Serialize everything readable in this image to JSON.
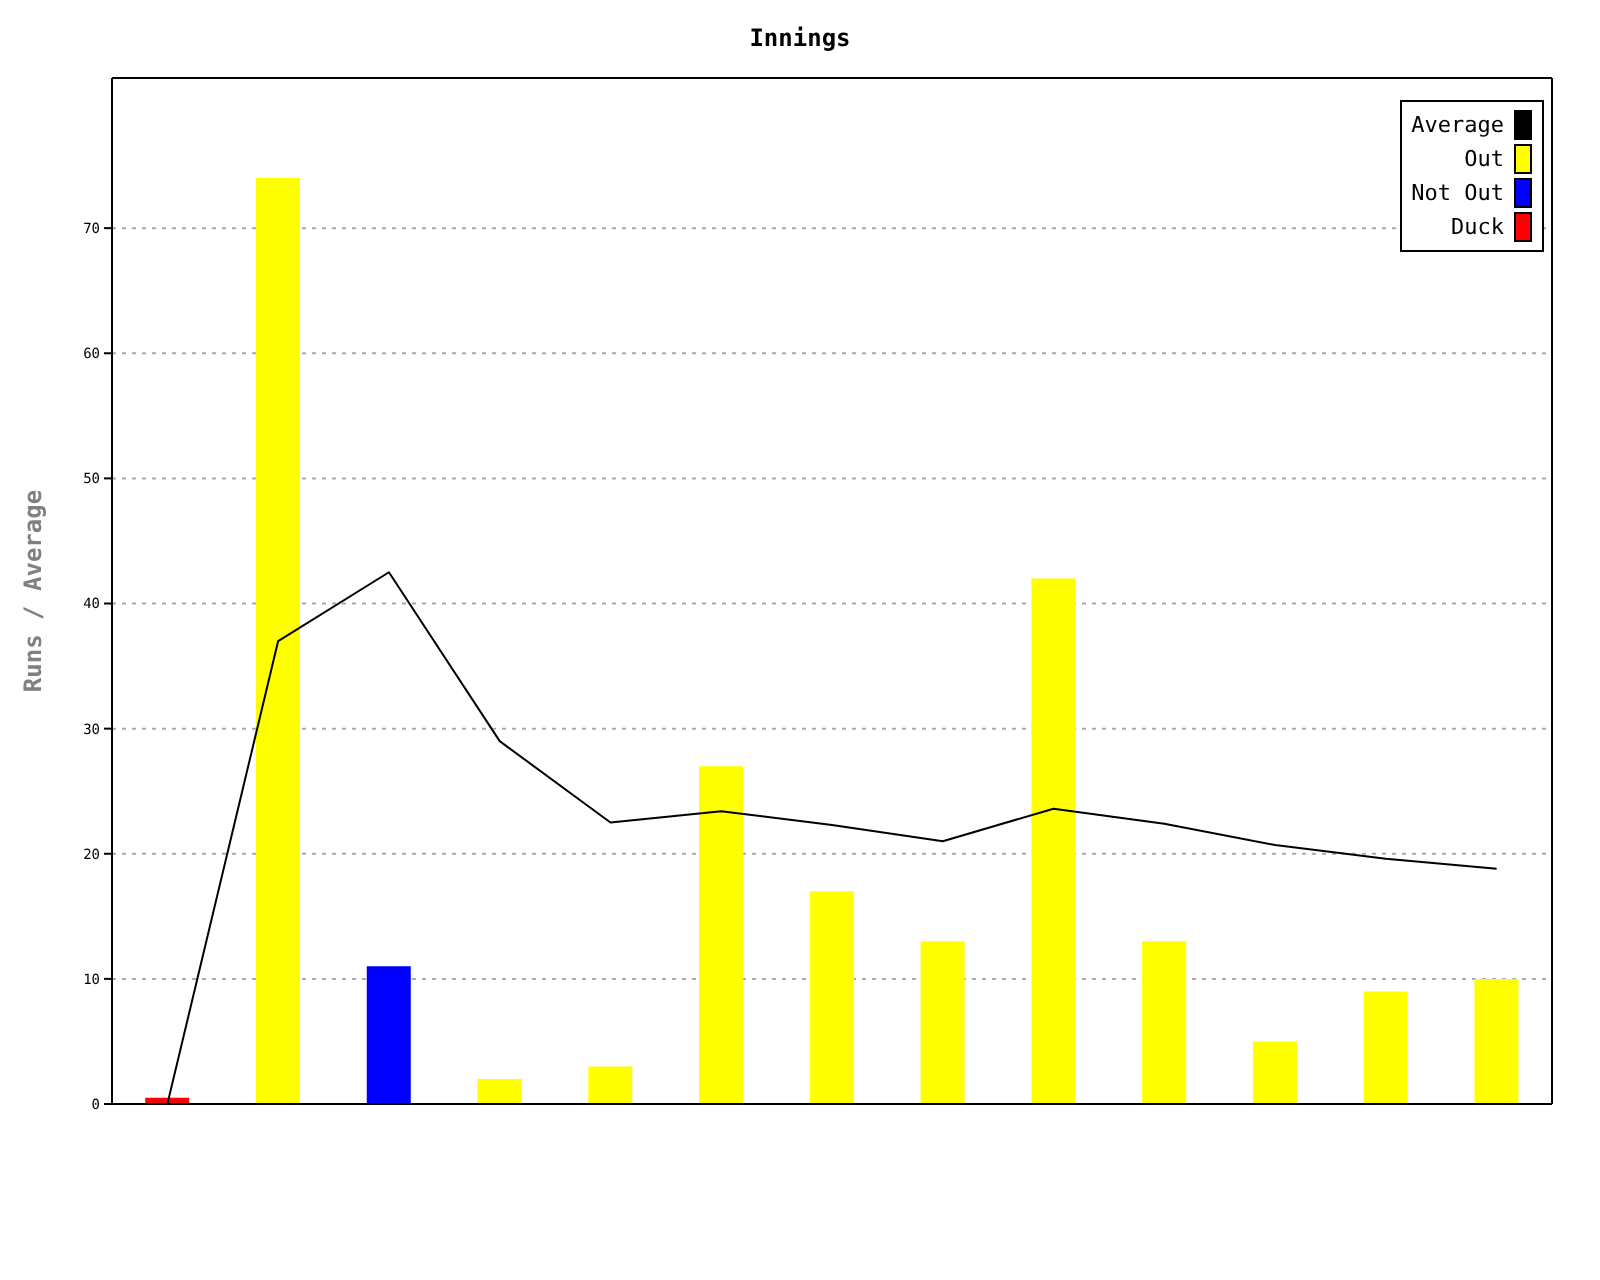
{
  "chart_data": {
    "type": "bar",
    "title": "Innings",
    "ylabel": "Runs / Average",
    "categories": [
      null,
      null,
      null,
      null,
      null,
      null,
      null,
      null,
      null,
      null,
      null,
      null,
      null
    ],
    "series": [
      {
        "name": "Average",
        "type": "line",
        "color": "#000000",
        "values": [
          0,
          37,
          42.5,
          29,
          22.5,
          23.4,
          22.3,
          21,
          23.6,
          22.4,
          20.7,
          19.6,
          18.8
        ]
      },
      {
        "name": "Out",
        "color": "#ffff00",
        "values": [
          null,
          74,
          null,
          2,
          3,
          27,
          17,
          13,
          42,
          13,
          5,
          9,
          10
        ]
      },
      {
        "name": "Not Out",
        "color": "#0000ff",
        "values": [
          null,
          null,
          11,
          null,
          null,
          null,
          null,
          null,
          null,
          null,
          null,
          null,
          null
        ]
      },
      {
        "name": "Duck",
        "color": "#ff0000",
        "values": [
          0.5,
          null,
          null,
          null,
          null,
          null,
          null,
          null,
          null,
          null,
          null,
          null,
          null
        ]
      }
    ],
    "stacked": true,
    "ylim": [
      0,
      82
    ],
    "yticks": [
      0,
      10,
      20,
      30,
      40,
      50,
      60,
      70
    ],
    "grid": "y",
    "legend": "top right",
    "marker": "none"
  }
}
